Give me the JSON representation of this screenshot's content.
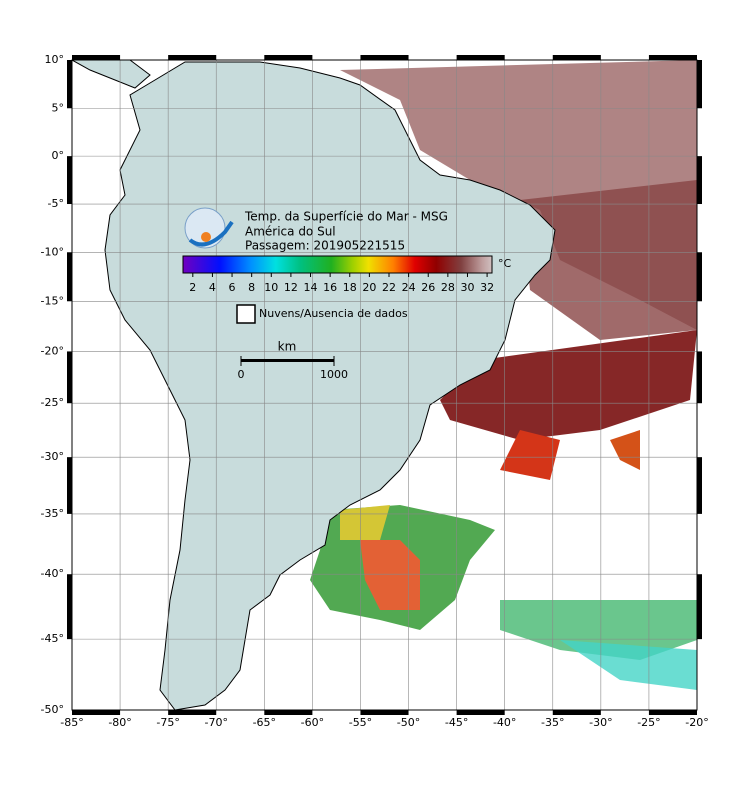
{
  "map": {
    "title": "Temp. da Superfície do Mar - MSG",
    "subtitle": "América do Sul",
    "pass": "Passagem: 201905221515",
    "xlim": [
      -85,
      -20
    ],
    "ylim": [
      -50,
      10
    ],
    "xticks": [
      {
        "value": -85,
        "label": "-85°"
      },
      {
        "value": -80,
        "label": "-80°"
      },
      {
        "value": -75,
        "label": "-75°"
      },
      {
        "value": -70,
        "label": "-70°"
      },
      {
        "value": -65,
        "label": "-65°"
      },
      {
        "value": -60,
        "label": "-60°"
      },
      {
        "value": -55,
        "label": "-55°"
      },
      {
        "value": -50,
        "label": "-50°"
      },
      {
        "value": -45,
        "label": "-45°"
      },
      {
        "value": -40,
        "label": "-40°"
      },
      {
        "value": -35,
        "label": "-35°"
      },
      {
        "value": -30,
        "label": "-30°"
      },
      {
        "value": -25,
        "label": "-25°"
      },
      {
        "value": -20,
        "label": "-20°"
      }
    ],
    "yticks": [
      {
        "value": 10,
        "label": "10°"
      },
      {
        "value": 5,
        "label": "5°"
      },
      {
        "value": 0,
        "label": "0°"
      },
      {
        "value": -5,
        "label": "-5°"
      },
      {
        "value": -10,
        "label": "-10°"
      },
      {
        "value": -15,
        "label": "-15°"
      },
      {
        "value": -20,
        "label": "-20°"
      },
      {
        "value": -25,
        "label": "-25°"
      },
      {
        "value": -30,
        "label": "-30°"
      },
      {
        "value": -35,
        "label": "-35°"
      },
      {
        "value": -40,
        "label": "-40°"
      },
      {
        "value": -45,
        "label": "-45°"
      },
      {
        "value": -50,
        "label": "-50°"
      }
    ],
    "grid": true,
    "colorbar": {
      "lim": [
        1,
        32.5
      ],
      "ticks": [
        2,
        4,
        6,
        8,
        10,
        12,
        14,
        16,
        18,
        20,
        22,
        24,
        26,
        28,
        30,
        32
      ],
      "unit": "°C"
    },
    "legend": "Nuvens/Ausencia de dados",
    "scale_bar": {
      "unit": "km",
      "ticks": [
        0,
        1000
      ]
    }
  }
}
